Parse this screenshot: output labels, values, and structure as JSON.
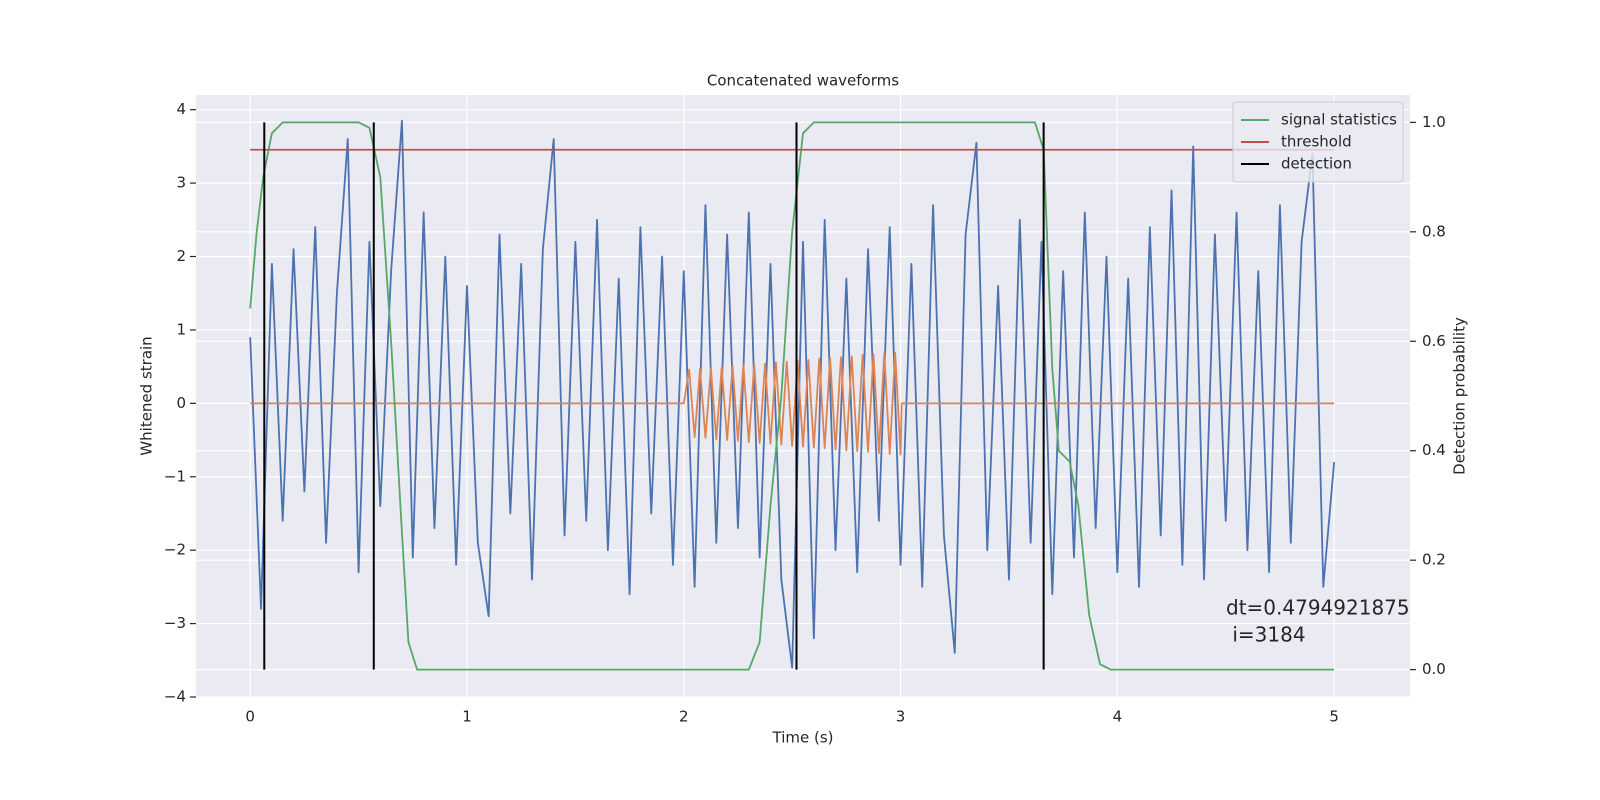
{
  "chart_data": {
    "type": "line",
    "title": "Concatenated waveforms",
    "xlabel": "Time (s)",
    "ylabel": "Whitened strain",
    "y2label": "Detection probability",
    "xlim": [
      -0.25,
      5.35
    ],
    "ylim": [
      -4,
      4.2
    ],
    "y2lim": [
      -0.05,
      1.05
    ],
    "xticks": [
      0,
      1,
      2,
      3,
      4,
      5
    ],
    "yticks": [
      {
        "value": -4,
        "label": "−4"
      },
      {
        "value": -3,
        "label": "−3"
      },
      {
        "value": -2,
        "label": "−2"
      },
      {
        "value": -1,
        "label": "−1"
      },
      0,
      1,
      2,
      3,
      4
    ],
    "y2ticks": [
      {
        "value": 0,
        "label": "0.0"
      },
      0.2,
      0.4,
      0.6,
      0.8,
      {
        "value": 1,
        "label": "1.0"
      }
    ],
    "grid": true,
    "legend": "upper right",
    "annotation": [
      "dt=0.4794921875",
      " i=3184"
    ],
    "series": [
      {
        "color": "#4c72b0",
        "axis": "y",
        "x": [
          0,
          0.05,
          0.1,
          0.15,
          0.2,
          0.25,
          0.3,
          0.35,
          0.4,
          0.45,
          0.5,
          0.55,
          0.6,
          0.65,
          0.7,
          0.75,
          0.8,
          0.85,
          0.9,
          0.95,
          1,
          1.05,
          1.1,
          1.15,
          1.2,
          1.25,
          1.3,
          1.35,
          1.4,
          1.45,
          1.5,
          1.55,
          1.6,
          1.65,
          1.7,
          1.75,
          1.8,
          1.85,
          1.9,
          1.95,
          2,
          2.05,
          2.1,
          2.15,
          2.2,
          2.25,
          2.3,
          2.35,
          2.4,
          2.45,
          2.5,
          2.55,
          2.6,
          2.65,
          2.7,
          2.75,
          2.8,
          2.85,
          2.9,
          2.95,
          3,
          3.05,
          3.1,
          3.15,
          3.2,
          3.25,
          3.3,
          3.35,
          3.4,
          3.45,
          3.5,
          3.55,
          3.6,
          3.65,
          3.7,
          3.75,
          3.8,
          3.85,
          3.9,
          3.95,
          4,
          4.05,
          4.1,
          4.15,
          4.2,
          4.25,
          4.3,
          4.35,
          4.4,
          4.45,
          4.5,
          4.55,
          4.6,
          4.65,
          4.7,
          4.75,
          4.8,
          4.85,
          4.9,
          4.95,
          5
        ],
        "values": [
          0.9,
          -2.8,
          1.9,
          -1.6,
          2.1,
          -1.2,
          2.4,
          -1.9,
          1.5,
          3.6,
          -2.3,
          2.2,
          -1.4,
          1.8,
          3.85,
          -2.1,
          2.6,
          -1.7,
          2.0,
          -2.2,
          1.6,
          -1.9,
          -2.9,
          2.3,
          -1.5,
          1.9,
          -2.4,
          2.1,
          3.6,
          -1.8,
          2.2,
          -1.6,
          2.5,
          -2.0,
          1.7,
          -2.6,
          2.4,
          -1.5,
          2.0,
          -2.2,
          1.8,
          -2.5,
          2.7,
          -1.9,
          2.3,
          -1.7,
          2.6,
          -2.1,
          1.9,
          -2.4,
          -3.6,
          2.2,
          -3.2,
          2.5,
          -2.0,
          1.7,
          -2.3,
          2.1,
          -1.6,
          2.4,
          -2.2,
          1.9,
          -2.5,
          2.7,
          -1.8,
          -3.4,
          2.3,
          3.55,
          -2.0,
          1.6,
          -2.4,
          2.5,
          -1.9,
          2.2,
          -2.6,
          1.8,
          -2.1,
          2.6,
          -1.7,
          2.0,
          -2.3,
          1.7,
          -2.5,
          2.4,
          -1.8,
          2.9,
          -2.2,
          3.5,
          -2.4,
          2.3,
          -1.6,
          2.6,
          -2.0,
          1.8,
          -2.3,
          2.7,
          -1.9,
          2.2,
          3.4,
          -2.5,
          -0.8
        ]
      },
      {
        "color": "#dd8452",
        "axis": "y",
        "x": [
          0,
          2,
          2.025,
          2.05,
          2.075,
          2.1,
          2.125,
          2.15,
          2.175,
          2.2,
          2.225,
          2.25,
          2.275,
          2.3,
          2.325,
          2.35,
          2.375,
          2.4,
          2.425,
          2.45,
          2.475,
          2.5,
          2.525,
          2.55,
          2.575,
          2.6,
          2.625,
          2.65,
          2.675,
          2.7,
          2.725,
          2.75,
          2.775,
          2.8,
          2.825,
          2.85,
          2.875,
          2.9,
          2.925,
          2.95,
          2.975,
          3,
          3.005,
          5
        ],
        "values": [
          0,
          0,
          0.46,
          -0.46,
          0.47,
          -0.47,
          0.48,
          -0.49,
          0.49,
          -0.5,
          0.51,
          -0.51,
          0.52,
          -0.53,
          0.53,
          -0.54,
          0.54,
          -0.55,
          0.56,
          -0.56,
          0.57,
          -0.58,
          0.58,
          -0.59,
          0.59,
          -0.6,
          0.61,
          -0.61,
          0.62,
          -0.63,
          0.63,
          -0.64,
          0.64,
          -0.65,
          0.66,
          -0.66,
          0.67,
          -0.68,
          0.68,
          -0.69,
          0.69,
          -0.7,
          0,
          0
        ]
      },
      {
        "name": "signal statistics",
        "color": "#55a868",
        "axis": "y2",
        "x": [
          0,
          0.03,
          0.06,
          0.1,
          0.15,
          0.5,
          0.55,
          0.6,
          0.65,
          0.7,
          0.73,
          0.77,
          2.3,
          2.35,
          2.4,
          2.45,
          2.5,
          2.55,
          2.6,
          3.62,
          3.66,
          3.7,
          3.73,
          3.78,
          3.82,
          3.87,
          3.92,
          3.97,
          5
        ],
        "values": [
          0.66,
          0.8,
          0.9,
          0.98,
          1.0,
          1.0,
          0.99,
          0.9,
          0.6,
          0.25,
          0.05,
          0.0,
          0.0,
          0.05,
          0.3,
          0.5,
          0.8,
          0.98,
          1.0,
          1.0,
          0.95,
          0.55,
          0.4,
          0.38,
          0.3,
          0.1,
          0.01,
          0.0,
          0.0
        ]
      },
      {
        "name": "threshold",
        "color": "#c44e52",
        "axis": "y2",
        "x": [
          0,
          5
        ],
        "values": [
          0.95,
          0.95
        ]
      }
    ],
    "detection": {
      "name": "detection",
      "color": "#000000",
      "axis": "y2",
      "x": [
        0.065,
        0.57,
        2.52,
        3.66
      ],
      "span": [
        0,
        1
      ]
    }
  }
}
